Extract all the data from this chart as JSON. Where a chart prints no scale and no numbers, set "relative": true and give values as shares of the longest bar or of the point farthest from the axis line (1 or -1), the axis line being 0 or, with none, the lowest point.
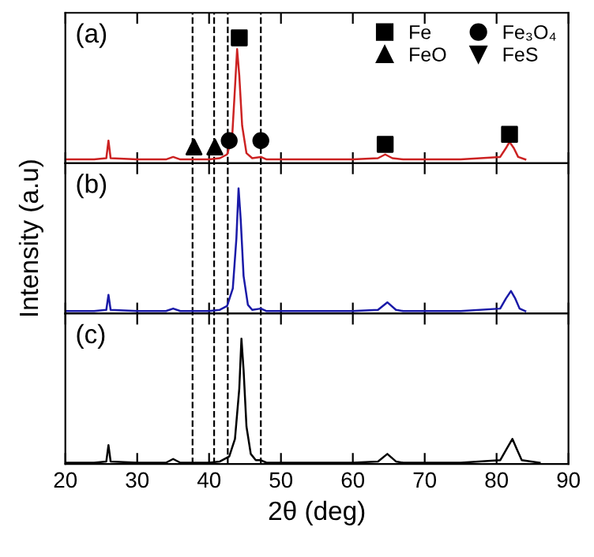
{
  "chart_data": [
    {
      "type": "line",
      "title": "(a)",
      "relative": true,
      "xlim": [
        20,
        90
      ],
      "xticks": [
        20,
        30,
        40,
        50,
        60,
        70,
        80,
        90
      ],
      "tick_labels": false,
      "legend": "top right",
      "grid": false,
      "ref_lines": [
        {
          "axis": "x",
          "value": 37.7,
          "color": "#000000",
          "line_style": "dashed"
        },
        {
          "axis": "x",
          "value": 40.7,
          "color": "#000000",
          "line_style": "dashed"
        },
        {
          "axis": "x",
          "value": 42.6,
          "color": "#000000",
          "line_style": "dashed"
        },
        {
          "axis": "x",
          "value": 47.2,
          "color": "#000000",
          "line_style": "dashed"
        }
      ],
      "series": [
        {
          "color": "#cc2222",
          "marker": "none",
          "x": [
            20,
            24,
            25.7,
            26,
            26.3,
            30,
            34,
            35,
            36,
            40,
            41.5,
            42.5,
            43.2,
            43.6,
            43.9,
            44.2,
            44.6,
            45.2,
            46,
            47.2,
            48,
            50,
            60,
            63.5,
            64.5,
            65.5,
            67,
            75,
            80.5,
            81.3,
            81.8,
            82.4,
            83,
            84
          ],
          "values": [
            0.03,
            0.03,
            0.04,
            0.18,
            0.04,
            0.03,
            0.03,
            0.05,
            0.03,
            0.03,
            0.04,
            0.07,
            0.2,
            0.6,
            0.91,
            0.7,
            0.3,
            0.08,
            0.04,
            0.05,
            0.03,
            0.03,
            0.03,
            0.04,
            0.07,
            0.04,
            0.03,
            0.03,
            0.05,
            0.12,
            0.17,
            0.12,
            0.05,
            0.03
          ]
        },
        {
          "type": "scatter",
          "name": "Fe",
          "color": "#000000",
          "marker": "square",
          "x": [
            44.2,
            64.5,
            81.8
          ],
          "values": [
            1.0,
            0.15,
            0.23
          ]
        },
        {
          "type": "scatter",
          "name": "FeO",
          "color": "#000000",
          "marker": "triangle",
          "x": [
            37.9,
            40.8
          ],
          "values": [
            0.13,
            0.13
          ]
        },
        {
          "type": "scatter",
          "name": "Fe₃O₄",
          "color": "#000000",
          "marker": "circle",
          "x": [
            42.8,
            47.2
          ],
          "values": [
            0.18,
            0.18
          ]
        },
        {
          "type": "scatter",
          "name": "FeS",
          "color": "#000000",
          "marker": "triangle_down"
        }
      ]
    },
    {
      "type": "line",
      "title": "(b)",
      "relative": true,
      "xlim": [
        20,
        90
      ],
      "xticks": [
        20,
        30,
        40,
        50,
        60,
        70,
        80,
        90
      ],
      "tick_labels": false,
      "ylabel": "Intensity (a.u)",
      "grid": false,
      "ref_lines": [
        {
          "axis": "x",
          "value": 37.7,
          "color": "#000000",
          "line_style": "dashed"
        },
        {
          "axis": "x",
          "value": 40.7,
          "color": "#000000",
          "line_style": "dashed"
        },
        {
          "axis": "x",
          "value": 42.6,
          "color": "#000000",
          "line_style": "dashed"
        },
        {
          "axis": "x",
          "value": 47.2,
          "color": "#000000",
          "line_style": "dashed"
        }
      ],
      "series": [
        {
          "color": "#1a1aa8",
          "marker": "none",
          "x": [
            20,
            24,
            25.7,
            26,
            26.3,
            30,
            34,
            35,
            36,
            40,
            41.5,
            42.5,
            43.3,
            43.8,
            44.1,
            44.4,
            44.8,
            45.4,
            46,
            47.2,
            48,
            50,
            60,
            63.5,
            64.8,
            66,
            67,
            75,
            80.5,
            81.3,
            82,
            82.6,
            83.2,
            84
          ],
          "values": [
            0.02,
            0.02,
            0.03,
            0.15,
            0.03,
            0.02,
            0.02,
            0.04,
            0.02,
            0.02,
            0.03,
            0.06,
            0.2,
            0.6,
            1.0,
            0.75,
            0.3,
            0.07,
            0.03,
            0.04,
            0.02,
            0.02,
            0.02,
            0.03,
            0.09,
            0.03,
            0.02,
            0.02,
            0.04,
            0.12,
            0.18,
            0.12,
            0.04,
            0.02
          ]
        }
      ]
    },
    {
      "type": "line",
      "title": "(c)",
      "relative": true,
      "xlim": [
        20,
        90
      ],
      "xticks": [
        20,
        30,
        40,
        50,
        60,
        70,
        80,
        90
      ],
      "tick_labels": "x",
      "xlabel": "2θ (deg)",
      "grid": false,
      "ref_lines": [
        {
          "axis": "x",
          "value": 37.7,
          "color": "#000000",
          "line_style": "dashed"
        },
        {
          "axis": "x",
          "value": 40.7,
          "color": "#000000",
          "line_style": "dashed"
        },
        {
          "axis": "x",
          "value": 42.6,
          "color": "#000000",
          "line_style": "dashed"
        },
        {
          "axis": "x",
          "value": 47.2,
          "color": "#000000",
          "line_style": "dashed"
        }
      ],
      "series": [
        {
          "color": "#000000",
          "marker": "none",
          "x": [
            20,
            24,
            25.7,
            26,
            26.3,
            30,
            34,
            35,
            36,
            40,
            41.5,
            42.8,
            43.6,
            44.2,
            44.5,
            44.8,
            45.2,
            45.8,
            46.5,
            47.2,
            48,
            50,
            60,
            63.5,
            64.8,
            66,
            67,
            75,
            80.5,
            81.5,
            82.2,
            82.8,
            83.5,
            86
          ],
          "values": [
            0.01,
            0.01,
            0.02,
            0.15,
            0.02,
            0.01,
            0.01,
            0.04,
            0.01,
            0.01,
            0.02,
            0.06,
            0.2,
            0.6,
            1.0,
            0.75,
            0.3,
            0.08,
            0.03,
            0.03,
            0.01,
            0.01,
            0.01,
            0.02,
            0.08,
            0.02,
            0.01,
            0.01,
            0.03,
            0.13,
            0.2,
            0.12,
            0.03,
            0.01
          ]
        }
      ]
    }
  ]
}
